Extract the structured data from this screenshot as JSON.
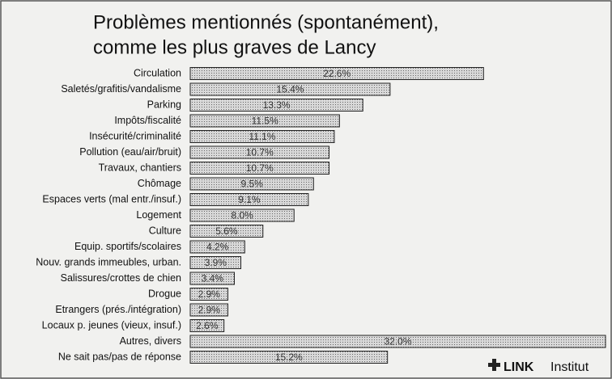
{
  "chart_data": {
    "type": "bar",
    "orientation": "horizontal",
    "title": [
      "Problèmes mentionnés (spontanément),",
      "comme les plus graves de Lancy"
    ],
    "categories": [
      "Circulation",
      "Saletés/grafitis/vandalisme",
      "Parking",
      "Impôts/fiscalité",
      "Insécurité/criminalité",
      "Pollution (eau/air/bruit)",
      "Travaux, chantiers",
      "Chômage",
      "Espaces verts (mal entr./insuf.)",
      "Logement",
      "Culture",
      "Equip. sportifs/scolaires",
      "Nouv. grands immeubles, urban.",
      "Salissures/crottes de chien",
      "Drogue",
      "Etrangers (prés./intégration)",
      "Locaux p. jeunes (vieux, insuf.)",
      "Autres, divers",
      "Ne sait pas/pas de réponse"
    ],
    "values": [
      22.6,
      15.4,
      13.3,
      11.5,
      11.1,
      10.7,
      10.7,
      9.5,
      9.1,
      8.0,
      5.6,
      4.2,
      3.9,
      3.4,
      2.9,
      2.9,
      2.6,
      32.0,
      15.2
    ],
    "value_labels": [
      "22.6%",
      "15.4%",
      "13.3%",
      "11.5%",
      "11.1%",
      "10.7%",
      "10.7%",
      "9.5%",
      "9.1%",
      "8.0%",
      "5.6%",
      "4.2%",
      "3.9%",
      "3.4%",
      "2.9%",
      "2.9%",
      "2.6%",
      "32.0%",
      "15.2%"
    ],
    "color": "#c4c4c4",
    "logo": [
      "LINK",
      "Institut"
    ]
  }
}
